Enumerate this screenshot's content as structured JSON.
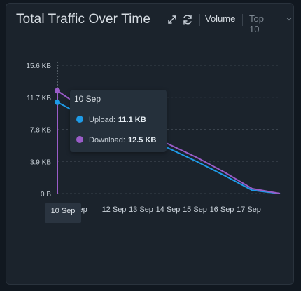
{
  "panel": {
    "title": "Total Traffic Over Time",
    "volume_label": "Volume",
    "top_label": "Top 10",
    "icons": [
      "expand-icon",
      "refresh-icon",
      "chevron-down-icon"
    ]
  },
  "tooltip": {
    "date": "10 Sep",
    "upload_label": "Upload:",
    "upload_value": "11.1 KB",
    "download_label": "Download:",
    "download_value": "12.5 KB"
  },
  "colors": {
    "upload": "#1e9be8",
    "download": "#9a5cc8",
    "grid": "#3a434d"
  },
  "chart_data": {
    "type": "line",
    "x": [
      "10 Sep",
      "11 Sep",
      "12 Sep",
      "13 Sep",
      "14 Sep",
      "15 Sep",
      "16 Sep",
      "17 Sep",
      "17.5 Sep"
    ],
    "x_ticks": [
      "10 Sep",
      "Sep",
      "12 Sep",
      "13 Sep",
      "14 Sep",
      "15 Sep",
      "16 Sep",
      "17 Sep"
    ],
    "y_ticks": [
      "0 B",
      "3.9 KB",
      "7.8 KB",
      "11.7 KB",
      "15.6 KB"
    ],
    "ylim": [
      0,
      15.6
    ],
    "y_unit": "KB",
    "grid": true,
    "series": [
      {
        "name": "Upload",
        "values": [
          11.1,
          9.3,
          8.0,
          6.9,
          5.5,
          3.9,
          2.2,
          0.4,
          0.0
        ]
      },
      {
        "name": "Download",
        "values": [
          12.5,
          10.2,
          8.5,
          7.3,
          6.0,
          4.4,
          2.6,
          0.6,
          0.0
        ]
      }
    ],
    "hover_index": 0
  }
}
